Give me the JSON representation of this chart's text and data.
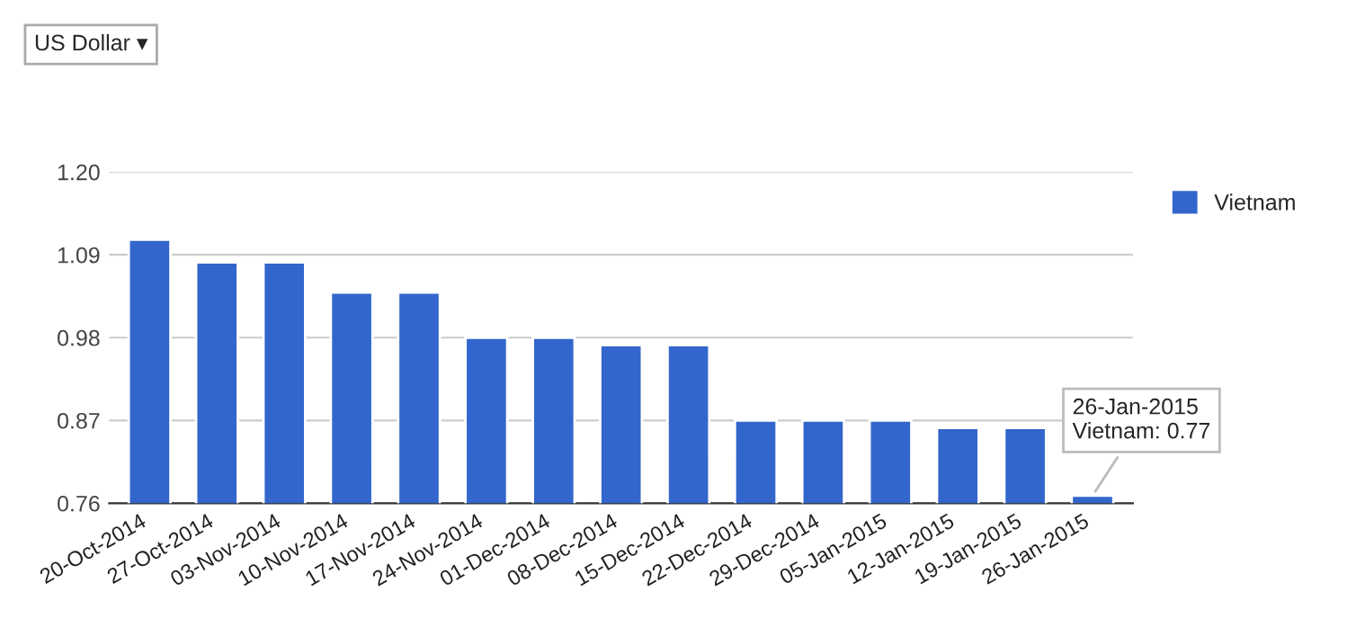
{
  "chart_data": {
    "type": "bar",
    "categories": [
      "20-Oct-2014",
      "27-Oct-2014",
      "03-Nov-2014",
      "10-Nov-2014",
      "17-Nov-2014",
      "24-Nov-2014",
      "01-Dec-2014",
      "08-Dec-2014",
      "15-Dec-2014",
      "22-Dec-2014",
      "29-Dec-2014",
      "05-Jan-2015",
      "12-Jan-2015",
      "19-Jan-2015",
      "26-Jan-2015"
    ],
    "series": [
      {
        "name": "Vietnam",
        "color": "#3366cc",
        "values": [
          1.11,
          1.08,
          1.08,
          1.04,
          1.04,
          0.98,
          0.98,
          0.97,
          0.97,
          0.87,
          0.87,
          0.87,
          0.86,
          0.86,
          0.77
        ]
      }
    ],
    "ylim": [
      0.76,
      1.2
    ],
    "yticks": [
      {
        "value": 0.76,
        "label": "0.76"
      },
      {
        "value": 0.87,
        "label": "0.87"
      },
      {
        "value": 0.98,
        "label": "0.98"
      },
      {
        "value": 1.09,
        "label": "1.09"
      },
      {
        "value": 1.2,
        "label": "1.20"
      }
    ],
    "grid": "y",
    "legend": "top right",
    "annotations": [
      "US Dollar ▾",
      {
        "text": "26-Jan-2015\nVietnam: 0.77",
        "x": "26-Jan-2015",
        "y": 0.77
      }
    ]
  }
}
